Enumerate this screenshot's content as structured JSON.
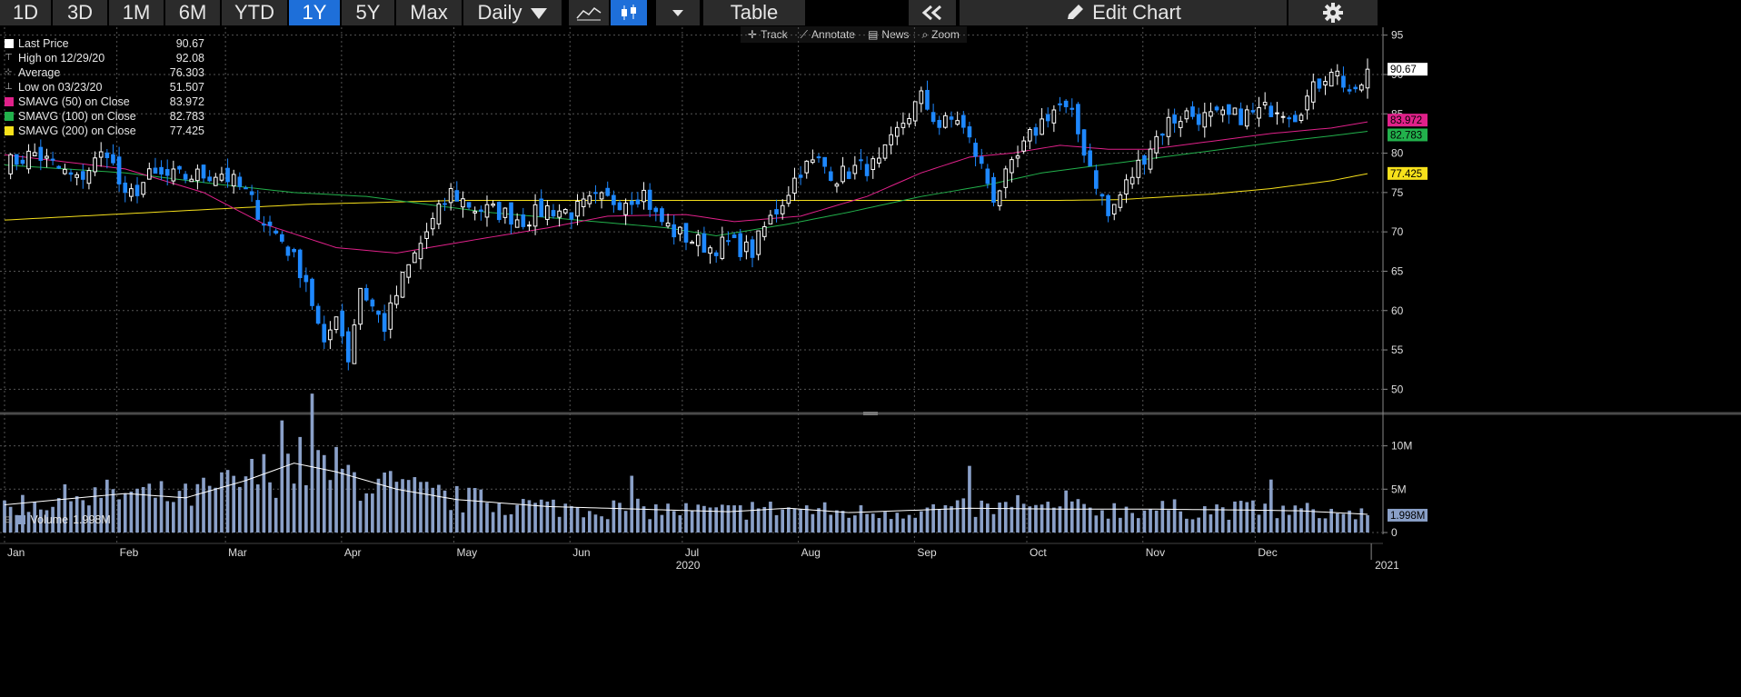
{
  "toolbar": {
    "ranges": [
      "1D",
      "3D",
      "1M",
      "6M",
      "YTD",
      "1Y",
      "5Y",
      "Max"
    ],
    "active_range": "1Y",
    "frequency": "Daily",
    "table_label": "Table",
    "edit_chart_label": "Edit Chart"
  },
  "subtools": {
    "track": "Track",
    "annotate": "Annotate",
    "news": "News",
    "zoom": "Zoom"
  },
  "legend": [
    {
      "label": "Last Price",
      "value": "90.67",
      "color": "#ffffff"
    },
    {
      "label": "High on 12/29/20",
      "value": "92.08",
      "color": ""
    },
    {
      "label": "Average",
      "value": "76.303",
      "color": ""
    },
    {
      "label": "Low on 03/23/20",
      "value": "51.507",
      "color": ""
    },
    {
      "label": "SMAVG (50)  on Close",
      "value": "83.972",
      "color": "#e0218a"
    },
    {
      "label": "SMAVG (100)  on Close",
      "value": "82.783",
      "color": "#22b14c"
    },
    {
      "label": "SMAVG (200)  on Close",
      "value": "77.425",
      "color": "#f7e11b"
    }
  ],
  "volume_legend": {
    "label": "Volume",
    "value": "1.998M",
    "color": "#8aa0c8"
  },
  "colors": {
    "up": "#ffffff",
    "down": "#1e88ff",
    "volume": "#8aa0c8",
    "sma50": "#e0218a",
    "sma100": "#22b14c",
    "sma200": "#f7e11b"
  },
  "chart_data": {
    "type": "candlestick",
    "price_axis": {
      "ticks": [
        50,
        55,
        60,
        65,
        70,
        75,
        80,
        85,
        90,
        95
      ],
      "range": [
        47.5,
        96
      ]
    },
    "volume_axis": {
      "ticks": [
        {
          "v": 0,
          "label": "0"
        },
        {
          "v": 5,
          "label": "5M"
        },
        {
          "v": 10,
          "label": "10M"
        }
      ],
      "unit": "M",
      "range": [
        0,
        13
      ]
    },
    "x_labels": [
      "Jan",
      "Feb",
      "Mar",
      "Apr",
      "May",
      "Jun",
      "Jul",
      "Aug",
      "Sep",
      "Oct",
      "Nov",
      "Dec"
    ],
    "x_year_labels": [
      "2020",
      "2021"
    ],
    "date_range": [
      "2020-01-02",
      "2020-12-31"
    ],
    "price_labels": [
      {
        "value": 90.67,
        "text": "90.67",
        "series": "last"
      },
      {
        "value": 83.972,
        "text": "83.972",
        "series": "sma50"
      },
      {
        "value": 82.783,
        "text": "82.783",
        "series": "sma100"
      },
      {
        "value": 77.425,
        "text": "77.425",
        "series": "sma200"
      }
    ],
    "volume_label": {
      "value": 1.998,
      "text": "1.998M"
    },
    "close_anchors": [
      [
        0,
        78.5
      ],
      [
        5,
        80
      ],
      [
        12,
        76.5
      ],
      [
        17,
        80.5
      ],
      [
        20,
        74
      ],
      [
        24,
        77
      ],
      [
        30,
        77
      ],
      [
        36,
        77.5
      ],
      [
        40,
        75
      ],
      [
        43,
        71.5
      ],
      [
        46,
        69
      ],
      [
        50,
        64
      ],
      [
        53,
        55
      ],
      [
        55,
        60
      ],
      [
        57,
        54
      ],
      [
        59,
        63
      ],
      [
        63,
        58
      ],
      [
        66,
        64
      ],
      [
        70,
        70
      ],
      [
        74,
        75
      ],
      [
        78,
        73
      ],
      [
        82,
        72.5
      ],
      [
        86,
        71.5
      ],
      [
        90,
        73
      ],
      [
        94,
        72.5
      ],
      [
        98,
        74
      ],
      [
        102,
        74
      ],
      [
        106,
        75
      ],
      [
        108,
        72
      ],
      [
        111,
        70
      ],
      [
        114,
        69
      ],
      [
        117,
        68
      ],
      [
        120,
        68.5
      ],
      [
        124,
        67.5
      ],
      [
        126,
        70.5
      ],
      [
        129,
        74
      ],
      [
        132,
        78
      ],
      [
        135,
        79
      ],
      [
        138,
        77
      ],
      [
        141,
        78
      ],
      [
        145,
        78.5
      ],
      [
        149,
        84
      ],
      [
        152,
        87
      ],
      [
        155,
        83.5
      ],
      [
        158,
        84.5
      ],
      [
        161,
        80
      ],
      [
        164,
        74.5
      ],
      [
        167,
        78
      ],
      [
        170,
        82
      ],
      [
        173,
        85
      ],
      [
        175,
        86
      ],
      [
        177,
        84.5
      ],
      [
        180,
        78.5
      ],
      [
        183,
        72
      ],
      [
        186,
        76
      ],
      [
        190,
        81
      ],
      [
        193,
        84
      ],
      [
        196,
        85
      ],
      [
        199,
        84.5
      ],
      [
        203,
        84.5
      ],
      [
        207,
        85
      ],
      [
        211,
        86
      ],
      [
        214,
        85
      ],
      [
        217,
        88
      ],
      [
        220,
        91
      ],
      [
        224,
        87
      ],
      [
        226,
        90.67
      ]
    ],
    "sma50_anchors": [
      [
        0,
        79.8
      ],
      [
        20,
        78
      ],
      [
        33,
        75
      ],
      [
        43,
        71
      ],
      [
        55,
        68
      ],
      [
        65,
        67.3
      ],
      [
        78,
        69
      ],
      [
        90,
        70.5
      ],
      [
        100,
        72
      ],
      [
        113,
        72.2
      ],
      [
        121,
        71.3
      ],
      [
        132,
        72
      ],
      [
        143,
        74.5
      ],
      [
        152,
        77.5
      ],
      [
        160,
        79.5
      ],
      [
        167,
        80
      ],
      [
        175,
        81
      ],
      [
        183,
        80.5
      ],
      [
        190,
        80.5
      ],
      [
        200,
        81.5
      ],
      [
        210,
        82.5
      ],
      [
        220,
        83.2
      ],
      [
        226,
        83.97
      ]
    ],
    "sma100_anchors": [
      [
        0,
        78.5
      ],
      [
        20,
        77.5
      ],
      [
        36,
        76
      ],
      [
        48,
        75
      ],
      [
        60,
        74.5
      ],
      [
        70,
        73.5
      ],
      [
        80,
        72.5
      ],
      [
        95,
        71.5
      ],
      [
        110,
        70.5
      ],
      [
        118,
        69.5
      ],
      [
        130,
        71
      ],
      [
        140,
        72.5
      ],
      [
        152,
        74.5
      ],
      [
        162,
        75.8
      ],
      [
        172,
        77.5
      ],
      [
        182,
        78.5
      ],
      [
        192,
        79.5
      ],
      [
        202,
        80.5
      ],
      [
        212,
        81.5
      ],
      [
        220,
        82.2
      ],
      [
        226,
        82.78
      ]
    ],
    "sma200_anchors": [
      [
        0,
        71.5
      ],
      [
        25,
        72.5
      ],
      [
        50,
        73.5
      ],
      [
        75,
        74
      ],
      [
        100,
        74
      ],
      [
        125,
        74
      ],
      [
        150,
        74
      ],
      [
        175,
        74
      ],
      [
        185,
        74.1
      ],
      [
        200,
        74.8
      ],
      [
        210,
        75.5
      ],
      [
        220,
        76.5
      ],
      [
        226,
        77.4
      ]
    ],
    "volume_mean_anchors": [
      [
        0,
        3.2
      ],
      [
        20,
        4.5
      ],
      [
        30,
        4
      ],
      [
        40,
        6
      ],
      [
        48,
        8
      ],
      [
        55,
        7
      ],
      [
        65,
        5
      ],
      [
        75,
        3.8
      ],
      [
        90,
        3
      ],
      [
        110,
        2.6
      ],
      [
        120,
        2.4
      ],
      [
        130,
        2.8
      ],
      [
        140,
        2.3
      ],
      [
        160,
        2.8
      ],
      [
        175,
        2.7
      ],
      [
        190,
        2.7
      ],
      [
        205,
        2.6
      ],
      [
        215,
        2.5
      ],
      [
        226,
        2.1
      ]
    ]
  }
}
